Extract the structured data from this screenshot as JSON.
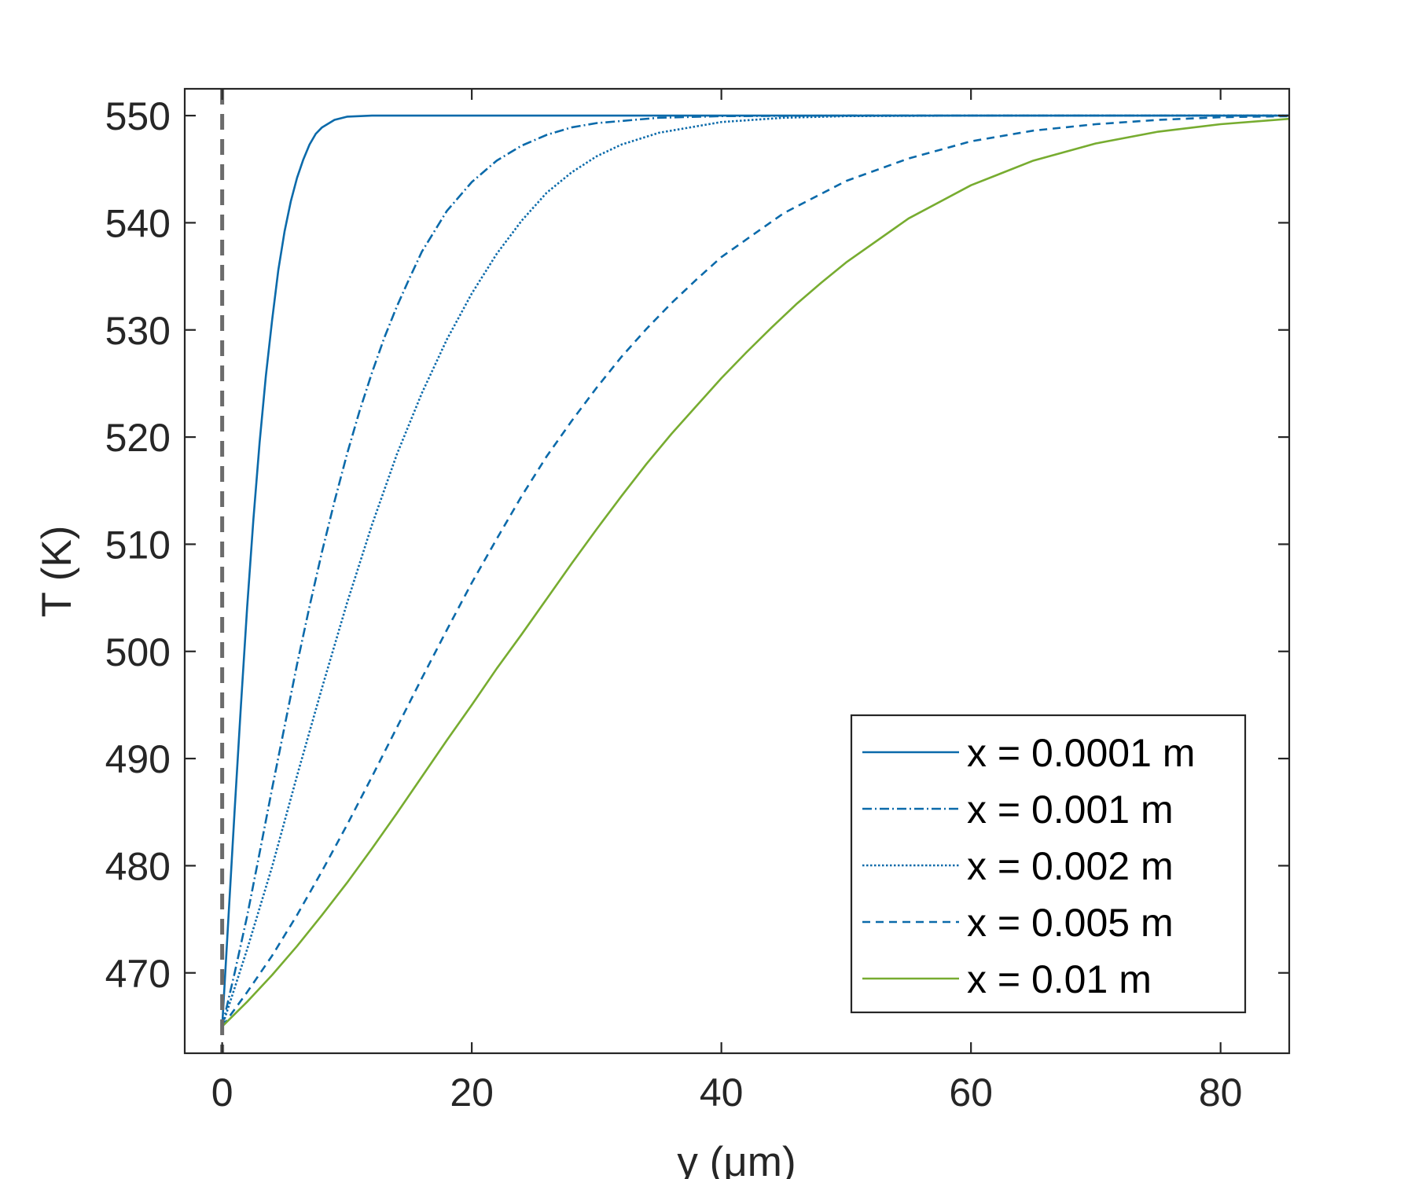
{
  "chart_data": {
    "type": "line",
    "title": "",
    "xlabel": "y (μm)",
    "ylabel": "T (K)",
    "xlim": [
      -3,
      85.5
    ],
    "ylim": [
      462.5,
      552.5
    ],
    "xticks": [
      0,
      20,
      40,
      60,
      80
    ],
    "yticks": [
      470,
      480,
      490,
      500,
      510,
      520,
      530,
      540,
      550
    ],
    "xtick_labels": [
      "0",
      "20",
      "40",
      "60",
      "80"
    ],
    "ytick_labels": [
      "470",
      "480",
      "490",
      "500",
      "510",
      "520",
      "530",
      "540",
      "550"
    ],
    "grid": false,
    "box": true,
    "legend_position": "bottom-right",
    "reference_line": {
      "x": 0,
      "style": "dashed",
      "color": "#6b6b6b"
    },
    "series": [
      {
        "name": "x = 0.0001 m",
        "color": "#0b6aaa",
        "dash": "solid",
        "x": [
          0,
          0.5,
          1,
          1.5,
          2,
          2.5,
          3,
          3.5,
          4,
          4.5,
          5,
          5.5,
          6,
          6.5,
          7,
          7.5,
          8,
          9,
          10,
          12,
          15,
          20,
          85.5
        ],
        "y": [
          465.0,
          475.1,
          485.2,
          494.9,
          504.1,
          512.3,
          519.5,
          525.7,
          530.9,
          535.6,
          539.2,
          542.0,
          544.2,
          545.9,
          547.3,
          548.3,
          548.9,
          549.6,
          549.9,
          550.0,
          550.0,
          550.0,
          550.0
        ]
      },
      {
        "name": "x = 0.001 m",
        "color": "#0b6aaa",
        "dash": "dashdot",
        "x": [
          0,
          1,
          2,
          3,
          4,
          5,
          6,
          7,
          8,
          9,
          10,
          11,
          12,
          13,
          14,
          15,
          16,
          18,
          20,
          22,
          24,
          26,
          28,
          30,
          35,
          40,
          50,
          60,
          85.5
        ],
        "y": [
          465.0,
          470.0,
          475.3,
          481.2,
          487.2,
          493.0,
          498.8,
          504.2,
          509.3,
          514.0,
          518.4,
          522.4,
          526.0,
          529.3,
          532.2,
          534.8,
          537.3,
          541.1,
          543.8,
          545.8,
          547.2,
          548.2,
          548.9,
          549.3,
          549.8,
          549.95,
          550.0,
          550.0,
          550.0
        ]
      },
      {
        "name": "x = 0.002 m",
        "color": "#0b6aaa",
        "dash": "dotted",
        "x": [
          0,
          2,
          4,
          6,
          8,
          10,
          12,
          14,
          16,
          18,
          20,
          22,
          24,
          26,
          28,
          30,
          32,
          35,
          40,
          45,
          50,
          60,
          70,
          85.5
        ],
        "y": [
          465.0,
          472.2,
          479.9,
          488.4,
          496.6,
          504.5,
          511.8,
          518.4,
          524.1,
          529.1,
          533.4,
          537.1,
          540.2,
          542.8,
          544.7,
          546.2,
          547.3,
          548.4,
          549.4,
          549.8,
          549.95,
          550.0,
          550.0,
          550.0
        ]
      },
      {
        "name": "x = 0.005 m",
        "color": "#0b6aaa",
        "dash": "dashed",
        "x": [
          0,
          2,
          4,
          6,
          8,
          10,
          12,
          14,
          16,
          18,
          20,
          22,
          24,
          26,
          28,
          30,
          32,
          34,
          36,
          38,
          40,
          45,
          50,
          55,
          60,
          65,
          70,
          75,
          80,
          85.5
        ],
        "y": [
          465.0,
          468.2,
          471.6,
          475.4,
          479.5,
          483.8,
          488.3,
          492.9,
          497.5,
          502.0,
          506.4,
          510.5,
          514.5,
          518.2,
          521.5,
          524.6,
          527.5,
          530.1,
          532.5,
          534.7,
          536.8,
          540.9,
          543.9,
          546.0,
          547.6,
          548.6,
          549.2,
          549.6,
          549.85,
          549.95
        ]
      },
      {
        "name": "x = 0.01 m",
        "color": "#77ac30",
        "dash": "solid",
        "x": [
          0,
          2,
          4,
          6,
          8,
          10,
          12,
          14,
          16,
          18,
          20,
          22,
          24,
          26,
          28,
          30,
          32,
          34,
          36,
          38,
          40,
          42,
          44,
          46,
          48,
          50,
          55,
          60,
          65,
          70,
          75,
          80,
          85.5
        ],
        "y": [
          465.0,
          467.3,
          469.8,
          472.5,
          475.4,
          478.4,
          481.6,
          484.9,
          488.3,
          491.7,
          495.0,
          498.4,
          501.6,
          504.9,
          508.2,
          511.4,
          514.5,
          517.5,
          520.3,
          522.9,
          525.5,
          527.9,
          530.2,
          532.4,
          534.4,
          536.3,
          540.4,
          543.5,
          545.8,
          547.4,
          548.5,
          549.2,
          549.7
        ]
      }
    ]
  }
}
